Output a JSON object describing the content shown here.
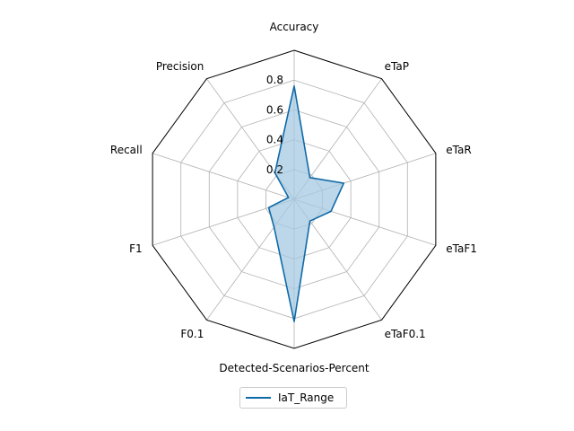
{
  "chart_data": {
    "type": "radar",
    "categories": [
      "Accuracy",
      "eTaP",
      "eTaR",
      "eTaF1",
      "eTaF0.1",
      "Detected-Scenarios-Percent",
      "F0.1",
      "F1",
      "Recall",
      "Precision"
    ],
    "series": [
      {
        "name": "IaT_Range",
        "values": [
          0.76,
          0.18,
          0.35,
          0.26,
          0.18,
          0.82,
          0.23,
          0.18,
          0.04,
          0.22
        ]
      }
    ],
    "rlim": [
      0,
      1
    ],
    "radial_ticks": [
      "0.2",
      "0.4",
      "0.6",
      "0.8"
    ],
    "radial_tick_values": [
      0.2,
      0.4,
      0.6,
      0.8
    ],
    "grid": true,
    "legend_position": "bottom-center",
    "colors": {
      "line": "#0f6aa8",
      "fill": "#a6c9e2",
      "grid": "#b0b0b0",
      "frame": "#000000"
    }
  },
  "legend": {
    "items": [
      "IaT_Range"
    ]
  }
}
